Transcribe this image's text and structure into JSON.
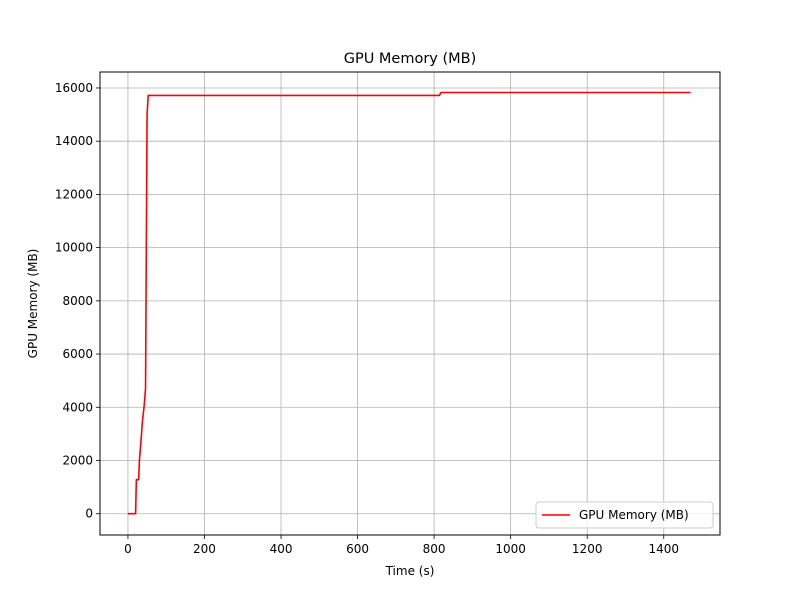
{
  "chart_data": {
    "type": "line",
    "title": "GPU Memory (MB)",
    "xlabel": "Time (s)",
    "ylabel": "GPU Memory (MB)",
    "xlim": [
      -73,
      1547
    ],
    "ylim": [
      -800,
      16600
    ],
    "x_ticks": [
      0,
      200,
      400,
      600,
      800,
      1000,
      1200,
      1400
    ],
    "y_ticks": [
      0,
      2000,
      4000,
      6000,
      8000,
      10000,
      12000,
      14000,
      16000
    ],
    "grid": true,
    "legend_position": "bottom-right",
    "colors": {
      "series": "#ff0000",
      "grid": "#b0b0b0"
    },
    "series": [
      {
        "name": "GPU Memory (MB)",
        "x": [
          0,
          20,
          22,
          28,
          30,
          35,
          38,
          42,
          46,
          50,
          53,
          60,
          200,
          400,
          600,
          814,
          818,
          1000,
          1470
        ],
        "y": [
          0,
          0,
          1280,
          1280,
          2000,
          2900,
          3500,
          4000,
          4700,
          15000,
          15720,
          15720,
          15720,
          15720,
          15720,
          15720,
          15830,
          15830,
          15830
        ]
      }
    ]
  }
}
